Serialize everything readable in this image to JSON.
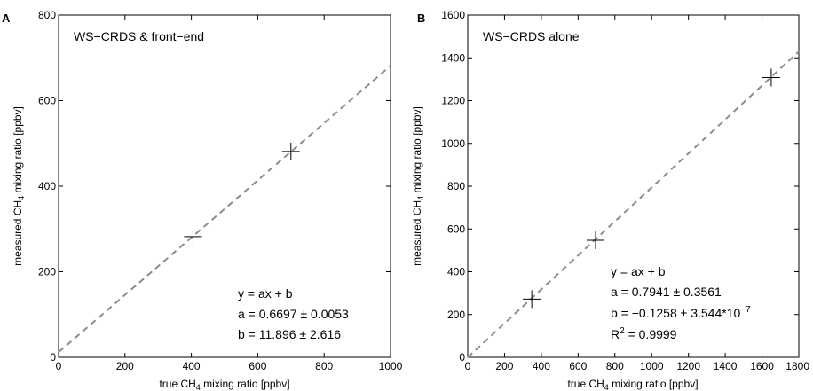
{
  "chart_data": [
    {
      "panel": "A",
      "type": "scatter",
      "title": "WS−CRDS & front−end",
      "xlabel_pre": "true CH",
      "xlabel_sub": "4",
      "xlabel_post": " mixing ratio [ppbv]",
      "ylabel_pre": "measured CH",
      "ylabel_sub": "4",
      "ylabel_post": " mixing ratio [ppbv]",
      "xlim": [
        0,
        1000
      ],
      "ylim": [
        0,
        800
      ],
      "xticks": [
        0,
        200,
        400,
        600,
        800,
        1000
      ],
      "yticks": [
        0,
        200,
        400,
        600,
        800
      ],
      "points": [
        {
          "x": 405,
          "y": 282
        },
        {
          "x": 700,
          "y": 481
        }
      ],
      "fit": {
        "slope": 0.6697,
        "intercept": 11.896
      },
      "fit_style": "dashed",
      "fit_color": "#8c8c8c",
      "annotation": {
        "line1": "y = ax + b",
        "line2": "a = 0.6697 ± 0.0053",
        "line3": "b = 11.896 ± 2.616"
      }
    },
    {
      "panel": "B",
      "type": "scatter",
      "title": "WS−CRDS alone",
      "xlabel_pre": "true CH",
      "xlabel_sub": "4",
      "xlabel_post": " mixing ratio [ppbv]",
      "ylabel_pre": "measured CH",
      "ylabel_sub": "4",
      "ylabel_post": " mixing ratio [ppbv]",
      "xlim": [
        0,
        1800
      ],
      "ylim": [
        0,
        1600
      ],
      "xticks": [
        0,
        200,
        400,
        600,
        800,
        1000,
        1200,
        1400,
        1600,
        1800
      ],
      "yticks": [
        0,
        200,
        400,
        600,
        800,
        1000,
        1200,
        1400,
        1600
      ],
      "points": [
        {
          "x": 348,
          "y": 272
        },
        {
          "x": 695,
          "y": 547
        },
        {
          "x": 1650,
          "y": 1308
        }
      ],
      "fit": {
        "slope": 0.7941,
        "intercept": 0
      },
      "fit_style": "dashed",
      "fit_color": "#8c8c8c",
      "annotation": {
        "line1": "y = ax + b",
        "line2": "a = 0.7941 ± 0.3561",
        "line3_pre": "b = −0.1258 ± 3.544*10",
        "line3_sup": "−7",
        "line4_pre": "R",
        "line4_sup": "2",
        "line4_post": " = 0.9999"
      }
    }
  ]
}
